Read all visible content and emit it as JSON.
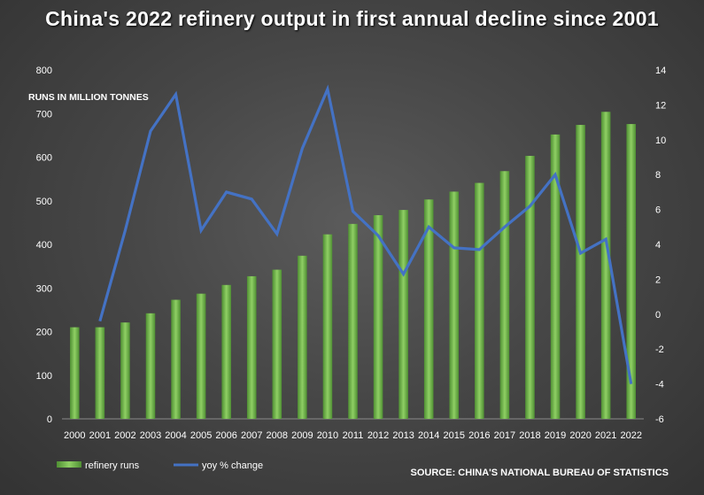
{
  "chart_data": {
    "type": "bar",
    "title": "China's 2022 refinery output in first annual decline since 2001",
    "ylabel": "RUNS IN MILLION TONNES",
    "ylim": [
      0,
      800
    ],
    "y2lim": [
      -6,
      14
    ],
    "yticks": [
      0,
      100,
      200,
      300,
      400,
      500,
      600,
      700,
      800
    ],
    "y2ticks": [
      -6,
      -4,
      -2,
      0,
      2,
      4,
      6,
      8,
      10,
      12,
      14
    ],
    "categories": [
      "2000",
      "2001",
      "2002",
      "2003",
      "2004",
      "2005",
      "2006",
      "2007",
      "2008",
      "2009",
      "2010",
      "2011",
      "2012",
      "2013",
      "2014",
      "2015",
      "2016",
      "2017",
      "2018",
      "2019",
      "2020",
      "2021",
      "2022"
    ],
    "series": [
      {
        "name": "refinery runs",
        "type": "bar",
        "axis": "left",
        "color": "#6ab04c",
        "values": [
          210,
          210,
          221,
          242,
          273,
          287,
          307,
          327,
          342,
          374,
          423,
          447,
          467,
          479,
          503,
          521,
          541,
          568,
          603,
          652,
          674,
          704,
          676
        ]
      },
      {
        "name": "yoy % change",
        "type": "line",
        "axis": "right",
        "color": "#4472c4",
        "values": [
          null,
          -0.4,
          4.8,
          10.5,
          12.6,
          4.8,
          7.0,
          6.6,
          4.6,
          9.5,
          12.9,
          5.9,
          4.5,
          2.3,
          5.0,
          3.8,
          3.7,
          5.0,
          6.2,
          8.0,
          3.5,
          4.3,
          -4.0
        ]
      }
    ],
    "grid": false,
    "legend": "bottom-left"
  },
  "source": "SOURCE: CHINA'S NATIONAL  BUREAU OF STATISTICS",
  "colors": {
    "bar": "#6ab04c",
    "line": "#4472c4",
    "axis": "#8a8a8a"
  }
}
